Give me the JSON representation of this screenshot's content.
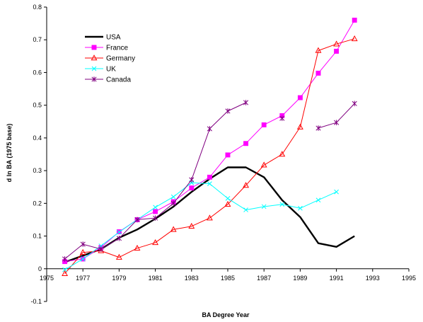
{
  "chart_data": {
    "type": "line",
    "title": "",
    "xlabel": "BA Degree Year",
    "ylabel": "d ln BA (1975 base)",
    "xlim": [
      1975,
      1995
    ],
    "ylim": [
      -0.1,
      0.8
    ],
    "xticks": [
      1975,
      1977,
      1979,
      1981,
      1983,
      1985,
      1987,
      1989,
      1991,
      1993,
      1995
    ],
    "yticks": [
      -0.1,
      0,
      0.1,
      0.2,
      0.3,
      0.4,
      0.5,
      0.6,
      0.7,
      0.8
    ],
    "xtick_labels": [
      "1975",
      "1977",
      "1979",
      "1981",
      "1983",
      "1985",
      "1987",
      "1989",
      "1991",
      "1993",
      "1995"
    ],
    "ytick_labels": [
      "-0.1",
      "0",
      "0.1",
      "0.2",
      "0.3",
      "0.4",
      "0.5",
      "0.6",
      "0.7",
      "0.8"
    ],
    "grid": false,
    "legend_position": "top-left",
    "series": [
      {
        "name": "USA",
        "color": "#000000",
        "marker": "none",
        "line_width": "thick",
        "points": [
          [
            1976,
            0.02
          ],
          [
            1977,
            0.04
          ],
          [
            1978,
            0.06
          ],
          [
            1979,
            0.095
          ],
          [
            1980,
            0.12
          ],
          [
            1981,
            0.153
          ],
          [
            1982,
            0.19
          ],
          [
            1983,
            0.235
          ],
          [
            1984,
            0.275
          ],
          [
            1985,
            0.31
          ],
          [
            1986,
            0.31
          ],
          [
            1987,
            0.28
          ],
          [
            1988,
            0.21
          ],
          [
            1989,
            0.158
          ],
          [
            1990,
            0.078
          ],
          [
            1991,
            0.067
          ],
          [
            1992,
            0.1
          ]
        ]
      },
      {
        "name": "France",
        "color": "#ff00ff",
        "marker": "square",
        "points": [
          [
            1976,
            0.022
          ],
          [
            1977,
            0.03
          ],
          [
            1978,
            0.065
          ],
          [
            1979,
            0.113
          ],
          [
            1980,
            0.15
          ],
          [
            1981,
            0.175
          ],
          [
            1982,
            0.205
          ],
          [
            1983,
            0.247
          ],
          [
            1984,
            0.28
          ],
          [
            1985,
            0.348
          ],
          [
            1986,
            0.383
          ],
          [
            1987,
            0.44
          ],
          [
            1988,
            0.468
          ],
          [
            1989,
            0.523
          ],
          [
            1990,
            0.598
          ],
          [
            1991,
            0.665
          ],
          [
            1992,
            0.76
          ]
        ]
      },
      {
        "name": "Germany",
        "color": "#ff0000",
        "marker": "triangle",
        "points": [
          [
            1976,
            -0.015
          ],
          [
            1977,
            0.05
          ],
          [
            1978,
            0.055
          ],
          [
            1979,
            0.035
          ],
          [
            1980,
            0.063
          ],
          [
            1981,
            0.08
          ],
          [
            1982,
            0.12
          ],
          [
            1983,
            0.13
          ],
          [
            1984,
            0.155
          ],
          [
            1985,
            0.197
          ],
          [
            1986,
            0.255
          ],
          [
            1987,
            0.317
          ],
          [
            1988,
            0.35
          ],
          [
            1989,
            0.433
          ],
          [
            1990,
            0.667
          ],
          [
            1991,
            0.687
          ],
          [
            1992,
            0.703
          ]
        ]
      },
      {
        "name": "UK",
        "color": "#00ffff",
        "marker": "x",
        "points": [
          [
            1976,
            -0.003
          ],
          [
            1977,
            0.03
          ],
          [
            1978,
            0.07
          ],
          [
            1979,
            0.112
          ],
          [
            1980,
            0.15
          ],
          [
            1981,
            0.188
          ],
          [
            1982,
            0.22
          ],
          [
            1983,
            0.263
          ],
          [
            1984,
            0.26
          ],
          [
            1985,
            0.215
          ],
          [
            1986,
            0.18
          ],
          [
            1987,
            0.19
          ],
          [
            1988,
            0.197
          ],
          [
            1989,
            0.185
          ],
          [
            1990,
            0.21
          ],
          [
            1991,
            0.235
          ]
        ]
      },
      {
        "name": "Canada",
        "color": "#800080",
        "marker": "star",
        "segments": [
          [
            [
              1976,
              0.03
            ],
            [
              1977,
              0.075
            ],
            [
              1978,
              0.06
            ],
            [
              1979,
              0.093
            ],
            [
              1980,
              0.15
            ],
            [
              1981,
              0.155
            ],
            [
              1982,
              0.2
            ],
            [
              1983,
              0.272
            ],
            [
              1984,
              0.428
            ],
            [
              1985,
              0.482
            ],
            [
              1986,
              0.508
            ]
          ],
          [
            [
              1988,
              0.46
            ]
          ],
          [
            [
              1990,
              0.43
            ],
            [
              1991,
              0.447
            ],
            [
              1992,
              0.505
            ]
          ]
        ]
      }
    ]
  }
}
